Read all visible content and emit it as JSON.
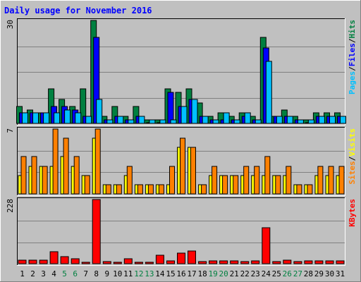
{
  "chart_data": {
    "type": "bar",
    "title": "Daily usage for November 2016",
    "days": [
      "1",
      "2",
      "3",
      "4",
      "5",
      "6",
      "7",
      "8",
      "9",
      "10",
      "11",
      "12",
      "13",
      "14",
      "15",
      "16",
      "17",
      "18",
      "19",
      "20",
      "21",
      "22",
      "23",
      "24",
      "25",
      "26",
      "27",
      "28",
      "29",
      "30",
      "31"
    ],
    "weekend_days": [
      "5",
      "6",
      "12",
      "13",
      "19",
      "20",
      "26",
      "27"
    ],
    "panels": [
      {
        "id": "hits_files_pages",
        "ymax_label": "30",
        "ymax": 30,
        "series": [
          {
            "name": "Hits",
            "color": "#008040",
            "values": [
              5,
              4,
              3,
              10,
              7,
              5,
              10,
              30,
              2,
              5,
              2,
              5,
              1,
              1,
              10,
              9,
              10,
              6,
              2,
              3,
              2,
              3,
              2,
              25,
              2,
              4,
              2,
              1,
              3,
              3,
              3
            ]
          },
          {
            "name": "Files",
            "color": "#0000ff",
            "values": [
              3,
              3,
              3,
              5,
              5,
              4,
              2,
              25,
              1,
              2,
              1,
              2,
              0,
              0,
              9,
              5,
              7,
              2,
              1,
              1,
              1,
              2,
              1,
              22,
              2,
              2,
              1,
              0,
              2,
              2,
              2
            ]
          },
          {
            "name": "Pages",
            "color": "#00c0ff",
            "values": [
              3,
              3,
              3,
              3,
              4,
              3,
              2,
              7,
              1,
              2,
              1,
              2,
              1,
              1,
              1,
              5,
              7,
              2,
              1,
              3,
              1,
              3,
              1,
              18,
              2,
              2,
              1,
              1,
              2,
              2,
              2
            ]
          }
        ],
        "legend_labels": [
          {
            "text": "Pages",
            "color": "#00c0ff"
          },
          {
            "text": "/",
            "color": "#000000"
          },
          {
            "text": "Files",
            "color": "#0000ff"
          },
          {
            "text": "/",
            "color": "#000000"
          },
          {
            "text": "Hits",
            "color": "#008040"
          }
        ]
      },
      {
        "id": "visits_sites",
        "ymax_label": "7",
        "ymax": 7,
        "series": [
          {
            "name": "Visits",
            "color": "#ffff00",
            "values": [
              2,
              3,
              3,
              3,
              4,
              3,
              2,
              6,
              1,
              1,
              2,
              1,
              1,
              1,
              1,
              5,
              5,
              1,
              2,
              2,
              2,
              2,
              2,
              2,
              2,
              2,
              1,
              1,
              2,
              2,
              2
            ]
          },
          {
            "name": "Sites",
            "color": "#ff8000",
            "values": [
              4,
              4,
              3,
              7,
              6,
              4,
              2,
              7,
              1,
              1,
              3,
              1,
              1,
              1,
              3,
              6,
              5,
              1,
              3,
              2,
              2,
              3,
              3,
              4,
              2,
              3,
              1,
              1,
              3,
              3,
              3
            ]
          }
        ],
        "legend_labels": [
          {
            "text": "Sites",
            "color": "#ff8000"
          },
          {
            "text": "/",
            "color": "#000000"
          },
          {
            "text": "Visits",
            "color": "#ffff00"
          }
        ]
      },
      {
        "id": "kbytes",
        "ymax_label": "228",
        "ymax": 228,
        "series": [
          {
            "name": "KBytes",
            "color": "#ff0000",
            "values": [
              12,
              12,
              12,
              42,
              24,
              18,
              4,
              228,
              8,
              4,
              18,
              6,
              4,
              30,
              10,
              38,
              45,
              8,
              10,
              10,
              10,
              8,
              10,
              128,
              8,
              12,
              8,
              10,
              10,
              10,
              10
            ]
          }
        ],
        "legend_labels": [
          {
            "text": "KBytes",
            "color": "#ff0000"
          }
        ]
      }
    ]
  }
}
